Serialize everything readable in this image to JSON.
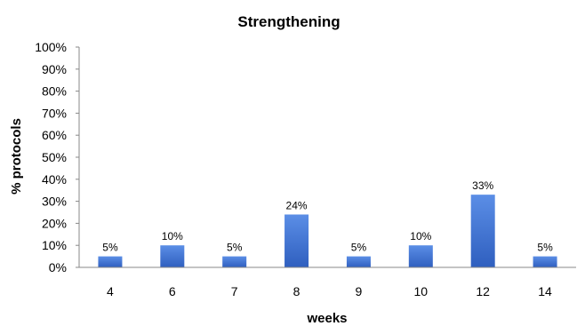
{
  "chart_data": {
    "type": "bar",
    "title": "Strengthening",
    "xlabel": "weeks",
    "ylabel": "% protocols",
    "categories": [
      "4",
      "6",
      "7",
      "8",
      "9",
      "10",
      "12",
      "14"
    ],
    "values": [
      5,
      10,
      5,
      24,
      5,
      10,
      33,
      5
    ],
    "data_labels": [
      "5%",
      "10%",
      "5%",
      "24%",
      "5%",
      "10%",
      "33%",
      "5%"
    ],
    "yticks": [
      "0%",
      "10%",
      "20%",
      "30%",
      "40%",
      "50%",
      "60%",
      "70%",
      "80%",
      "90%",
      "100%"
    ],
    "ylim": [
      0,
      100
    ],
    "grid": false,
    "legend": "none",
    "colors": {
      "bar_top": "#5b8ee6",
      "bar_bottom": "#2f5fbf",
      "axis": "#888888"
    }
  }
}
